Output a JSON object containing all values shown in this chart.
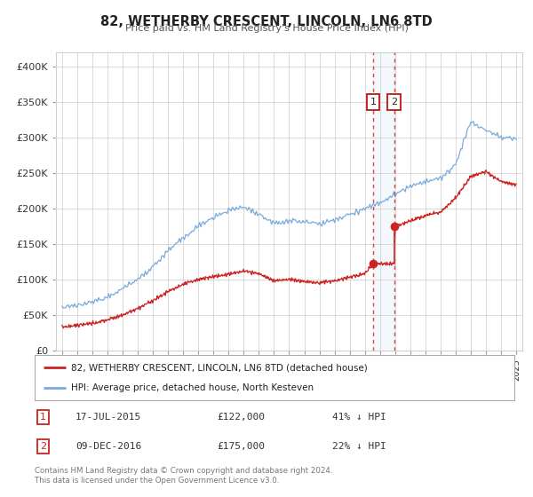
{
  "title": "82, WETHERBY CRESCENT, LINCOLN, LN6 8TD",
  "subtitle": "Price paid vs. HM Land Registry's House Price Index (HPI)",
  "hpi_color": "#7aaadd",
  "price_color": "#cc2222",
  "vline_color": "#dd4444",
  "shade_color": "#d0e4f7",
  "marker1_date_x": 2015.54,
  "marker2_date_x": 2016.93,
  "marker1_price": 122000,
  "marker2_price": 175000,
  "legend_entry1": "82, WETHERBY CRESCENT, LINCOLN, LN6 8TD (detached house)",
  "legend_entry2": "HPI: Average price, detached house, North Kesteven",
  "ylim": [
    0,
    420000
  ],
  "yticks": [
    0,
    50000,
    100000,
    150000,
    200000,
    250000,
    300000,
    350000,
    400000
  ],
  "ytick_labels": [
    "£0",
    "£50K",
    "£100K",
    "£150K",
    "£200K",
    "£250K",
    "£300K",
    "£350K",
    "£400K"
  ],
  "xlim_start": 1994.6,
  "xlim_end": 2025.4,
  "background_color": "#ffffff",
  "grid_color": "#cccccc",
  "box_color": "#cc2222",
  "footer": "Contains HM Land Registry data © Crown copyright and database right 2024.\nThis data is licensed under the Open Government Licence v3.0."
}
